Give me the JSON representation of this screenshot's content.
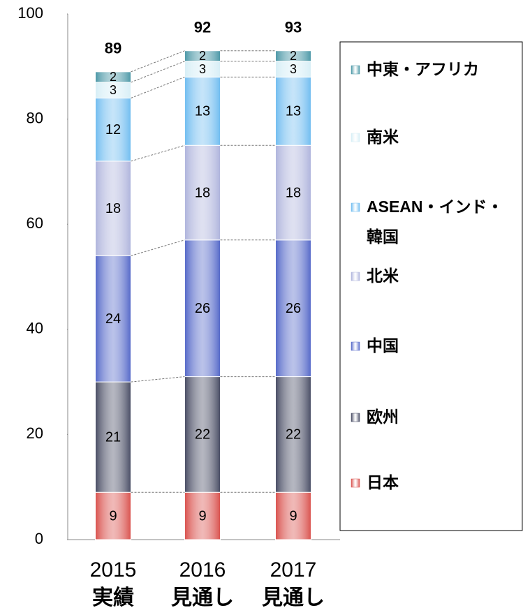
{
  "chart_data": {
    "type": "bar",
    "stacked": true,
    "categories": [
      "2015",
      "2016",
      "2017"
    ],
    "category_sublabels": [
      "実績",
      "見通し",
      "見通し"
    ],
    "totals": [
      89,
      92,
      93
    ],
    "series": [
      {
        "name": "日本",
        "color": "#d9504c",
        "values": [
          9,
          9,
          9
        ]
      },
      {
        "name": "欧州",
        "color": "#474b63",
        "values": [
          21,
          22,
          22
        ]
      },
      {
        "name": "中国",
        "color": "#5367c8",
        "values": [
          24,
          26,
          26
        ]
      },
      {
        "name": "北米",
        "color": "#aeb3dc",
        "values": [
          18,
          18,
          18
        ]
      },
      {
        "name": "ASEAN・インド・韓国",
        "color": "#6fbcf0",
        "values": [
          12,
          13,
          13
        ]
      },
      {
        "name": "南米",
        "color": "#d6eef6",
        "values": [
          3,
          3,
          3
        ]
      },
      {
        "name": "中東・アフリカ",
        "color": "#4a97a6",
        "values": [
          2,
          2,
          2
        ]
      }
    ],
    "ylim": [
      0,
      100
    ],
    "yticks": [
      0,
      20,
      40,
      60,
      80,
      100
    ],
    "grid": false,
    "legend": "right"
  }
}
